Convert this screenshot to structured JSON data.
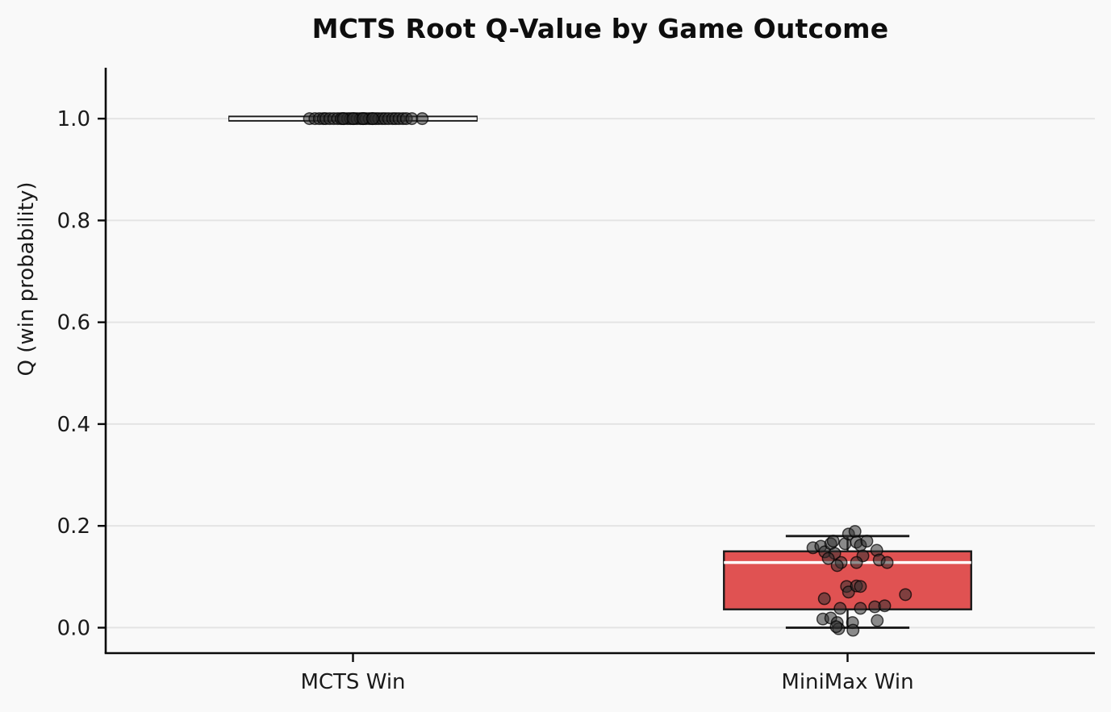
{
  "chart_data": {
    "type": "box",
    "title": "MCTS Root Q-Value by Game Outcome",
    "ylabel": "Q (win probability)",
    "xlabel": "",
    "categories": [
      "MCTS Win",
      "MiniMax Win"
    ],
    "ylim": [
      -0.05,
      1.1
    ],
    "yticks": [
      0.0,
      0.2,
      0.4,
      0.6,
      0.8,
      1.0
    ],
    "grid": true,
    "legend": false,
    "box_width": 0.5,
    "colors": {
      "background": "#f9f9f9",
      "grid": "#e4e4e4",
      "spine": "#0a0a0a",
      "box_edge": "#1a1a1a",
      "median": "#ffffff",
      "point_fill": "#303030",
      "point_edge": "#000000",
      "text": "#1a1a1a"
    },
    "groups": [
      {
        "label": "MCTS Win",
        "color": "#ffffff",
        "stats": {
          "whislo": 1.0,
          "q1": 1.0,
          "med": 1.0,
          "q3": 1.0,
          "whishi": 1.0
        },
        "points": [
          [
            -0.088,
            1.0
          ],
          [
            -0.077,
            1.0
          ],
          [
            -0.068,
            1.0
          ],
          [
            -0.06,
            1.0
          ],
          [
            -0.055,
            1.0
          ],
          [
            -0.047,
            1.0
          ],
          [
            -0.039,
            1.0
          ],
          [
            -0.031,
            1.0
          ],
          [
            -0.024,
            1.0
          ],
          [
            -0.018,
            1.0
          ],
          [
            -0.011,
            1.0
          ],
          [
            -0.005,
            1.0
          ],
          [
            0.002,
            1.0
          ],
          [
            0.008,
            1.0
          ],
          [
            0.015,
            1.0
          ],
          [
            0.021,
            1.0
          ],
          [
            0.026,
            1.0
          ],
          [
            0.033,
            1.0
          ],
          [
            0.039,
            1.0
          ],
          [
            0.046,
            1.0
          ],
          [
            0.052,
            1.0
          ],
          [
            0.059,
            1.0
          ],
          [
            0.065,
            1.0
          ],
          [
            0.072,
            1.0
          ],
          [
            0.08,
            1.0
          ],
          [
            0.086,
            1.0
          ],
          [
            0.093,
            1.0
          ],
          [
            0.101,
            1.0
          ],
          [
            0.108,
            1.0
          ],
          [
            0.119,
            1.0
          ],
          [
            0.14,
            1.0
          ],
          [
            -0.02,
            1.0
          ],
          [
            0.0,
            1.0
          ],
          [
            0.02,
            1.0
          ],
          [
            0.04,
            1.0
          ]
        ]
      },
      {
        "label": "MiniMax Win",
        "color": "#e05252",
        "stats": {
          "whislo": 0.0,
          "q1": 0.036,
          "med": 0.128,
          "q3": 0.15,
          "whishi": 0.18
        },
        "points": [
          [
            -0.07,
            0.157
          ],
          [
            -0.054,
            0.16
          ],
          [
            -0.046,
            0.149
          ],
          [
            -0.034,
            0.165
          ],
          [
            -0.029,
            0.17
          ],
          [
            -0.026,
            0.146
          ],
          [
            -0.013,
            0.128
          ],
          [
            -0.039,
            0.136
          ],
          [
            -0.005,
            0.165
          ],
          [
            0.002,
            0.184
          ],
          [
            0.015,
            0.189
          ],
          [
            0.018,
            0.168
          ],
          [
            0.026,
            0.162
          ],
          [
            0.031,
            0.141
          ],
          [
            0.039,
            0.17
          ],
          [
            0.018,
            0.128
          ],
          [
            0.059,
            0.152
          ],
          [
            0.064,
            0.133
          ],
          [
            0.08,
            0.128
          ],
          [
            -0.021,
            0.122
          ],
          [
            -0.047,
            0.057
          ],
          [
            -0.002,
            0.081
          ],
          [
            0.002,
            0.07
          ],
          [
            0.018,
            0.082
          ],
          [
            0.026,
            0.081
          ],
          [
            0.117,
            0.065
          ],
          [
            -0.015,
            0.038
          ],
          [
            0.026,
            0.038
          ],
          [
            0.055,
            0.041
          ],
          [
            0.075,
            0.043
          ],
          [
            -0.05,
            0.017
          ],
          [
            -0.034,
            0.019
          ],
          [
            -0.021,
            0.01
          ],
          [
            -0.018,
            -0.002
          ],
          [
            0.01,
            0.01
          ],
          [
            0.011,
            -0.005
          ],
          [
            0.06,
            0.014
          ],
          [
            -0.023,
            0.002
          ]
        ]
      }
    ]
  }
}
